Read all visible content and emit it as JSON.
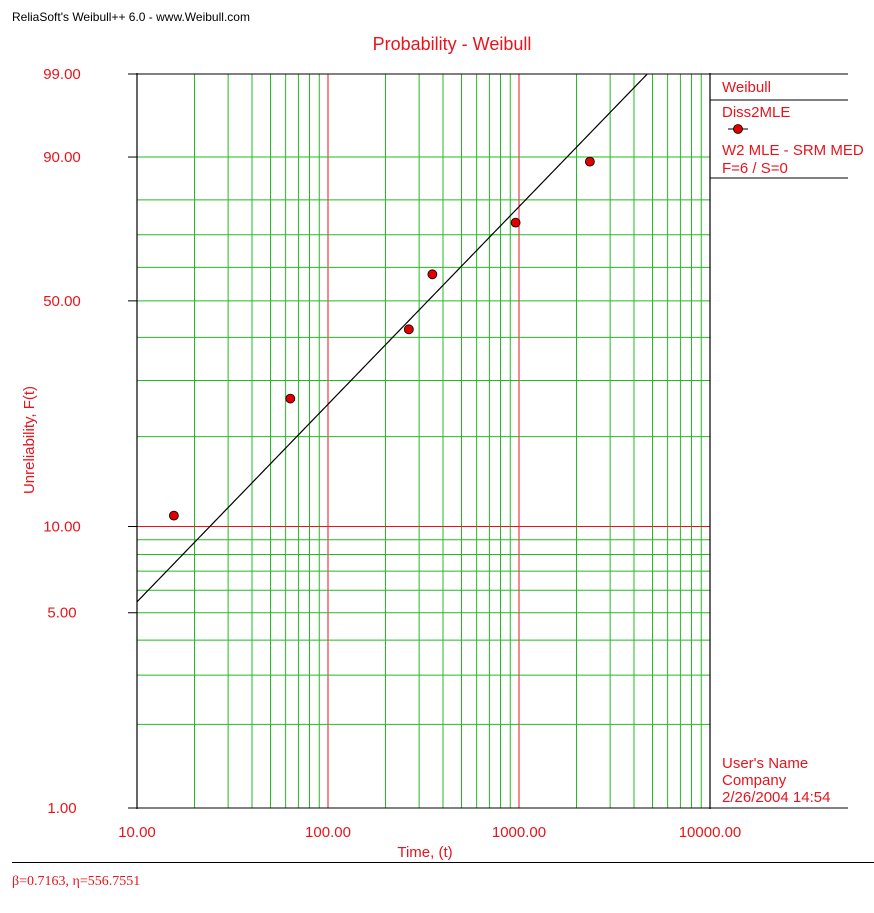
{
  "app_title": "ReliaSoft's Weibull++ 6.0 - www.Weibull.com",
  "colors": {
    "text": "#e8141c",
    "grid_minor": "#22bb22",
    "grid_major": "#e8141c",
    "fit_line": "#000000",
    "point": "#e00000"
  },
  "chart_data": {
    "type": "scatter",
    "title": "Probability - Weibull",
    "xlabel": "Time, (t)",
    "ylabel": "Unreliability, F(t)",
    "x_scale": "log",
    "y_scale": "weibull",
    "xlim": [
      10,
      10000
    ],
    "ylim": [
      1,
      99
    ],
    "x_tick_labels": [
      "10.00",
      "100.00",
      "1000.00",
      "10000.00"
    ],
    "y_tick_labels": [
      "1.00",
      "5.00",
      "10.00",
      "50.00",
      "90.00",
      "99.00"
    ],
    "grid": true,
    "points": [
      {
        "x": 15.6,
        "y": 10.9
      },
      {
        "x": 63.5,
        "y": 26.4
      },
      {
        "x": 265,
        "y": 42.1
      },
      {
        "x": 352,
        "y": 57.9
      },
      {
        "x": 960,
        "y": 73.6
      },
      {
        "x": 2350,
        "y": 89.1
      }
    ],
    "fit": {
      "beta": 0.7163,
      "eta": 556.7551
    },
    "legend": {
      "position": "right",
      "lines": [
        "Weibull",
        "Diss2MLE",
        "W2 MLE - SRM MED",
        "F=6 / S=0"
      ]
    },
    "user_info": [
      "User's Name",
      "Company",
      "2/26/2004 14:54"
    ]
  },
  "footer": {
    "params": "β=0.7163, η=556.7551"
  }
}
